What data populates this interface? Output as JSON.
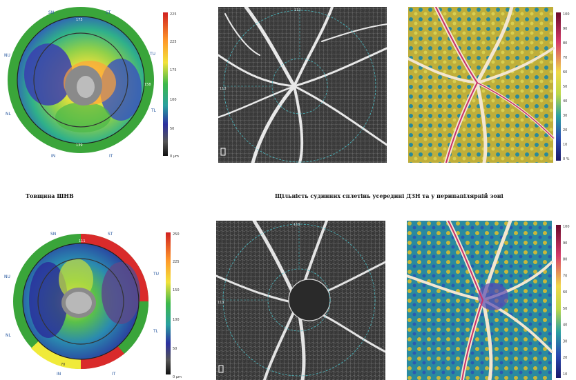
{
  "captions": {
    "thickness": "Товщина ШНВ",
    "density": "Щільність судинних сплетінь усередині ДЗН та у перипапілярній зоні"
  },
  "thickness_maps": [
    {
      "sectors": {
        "SN": "SN",
        "ST": "ST",
        "NU": "NU",
        "TU": "TU",
        "NL": "NL",
        "TL": "TL",
        "IN": "IN",
        "IT": "IT"
      },
      "sector_values": [
        "173",
        "158",
        "139"
      ],
      "scale": {
        "max": "225",
        "t1": "225",
        "t2": "175",
        "t3": "100",
        "t4": "50",
        "min": "0 µm"
      }
    },
    {
      "sectors": {
        "SN": "SN",
        "ST": "ST",
        "NU": "NU",
        "TU": "TU",
        "NL": "NL",
        "TL": "TL",
        "IN": "IN",
        "IT": "IT"
      },
      "sector_values": [
        "111",
        "70"
      ],
      "scale": {
        "max": "250",
        "t1": "225",
        "t2": "150",
        "t3": "100",
        "t4": "50",
        "min": "0 µm"
      }
    }
  ],
  "angio_labels": {
    "top": {
      "sup": "113",
      "left": "113"
    },
    "bottom": {
      "sup": "113",
      "left": "113"
    }
  },
  "density_scales": [
    {
      "ticks": [
        "100",
        "90",
        "80",
        "70",
        "60",
        "50",
        "40",
        "30",
        "20",
        "10",
        "0 %"
      ]
    },
    {
      "ticks": [
        "100",
        "90",
        "80",
        "70",
        "60",
        "50",
        "40",
        "30",
        "20",
        "10"
      ]
    }
  ],
  "colors": {
    "ring_green": "#3aa53a",
    "ring_red": "#d92b2b",
    "ring_yellow": "#f0ea3a",
    "oct_ring": "#4cc0c8"
  }
}
